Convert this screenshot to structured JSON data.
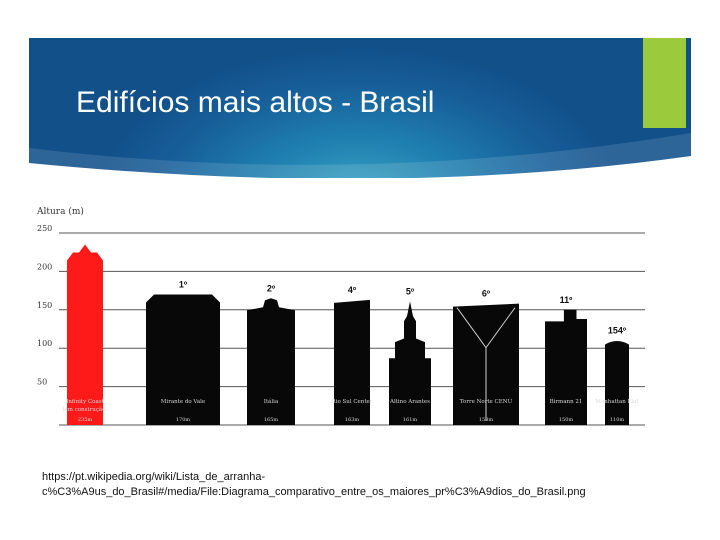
{
  "slide": {
    "title": "Edifícios mais altos - Brasil",
    "source_line1": "https://pt.wikipedia.org/wiki/Lista_de_arranha-",
    "source_line2": "c%C3%A9us_do_Brasil#/media/File:Diagrama_comparativo_entre_os_maiores_pr%C3%A9dios_do_Brasil.png",
    "accent_color": "#9bcb3c"
  },
  "chart_data": {
    "type": "bar",
    "ylabel": "Altura (m)",
    "yticks": [
      50,
      100,
      150,
      200,
      250
    ],
    "ylim": [
      0,
      250
    ],
    "categories": [
      "Infinity Coast (em construção)",
      "Mirante do Vale",
      "Itália",
      "Rio Sul Center",
      "Altino Arantes",
      "Torre Norte CENU",
      "Birmann 21",
      "Manhattan Flat"
    ],
    "ranks": [
      "",
      "1º",
      "2º",
      "4º",
      "5º",
      "6º",
      "11º",
      "154º"
    ],
    "height_labels": [
      "235m",
      "170m",
      "165m",
      "163m",
      "161m",
      "158m",
      "150m",
      "110m"
    ],
    "values": [
      235,
      170,
      165,
      163,
      161,
      158,
      150,
      110
    ],
    "colors": [
      "#ff1a1a",
      "#080808",
      "#080808",
      "#080808",
      "#080808",
      "#080808",
      "#080808",
      "#080808"
    ]
  }
}
